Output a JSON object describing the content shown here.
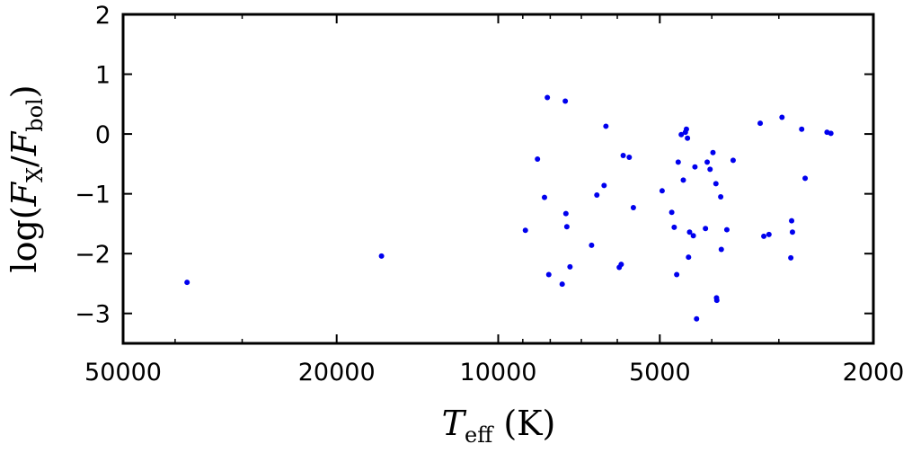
{
  "chart_data": {
    "type": "scatter",
    "xscale": "log",
    "x_reversed": true,
    "xlim": [
      50000,
      2000
    ],
    "ylim": [
      -3.5,
      2
    ],
    "xlabel": "T_eff (K)",
    "ylabel": "log(F_X/F_bol)",
    "x_ticks": [
      50000,
      20000,
      10000,
      5000,
      2000
    ],
    "x_tick_labels": [
      "50000",
      "20000",
      "10000",
      "5000",
      "2000"
    ],
    "y_ticks": [
      2,
      1,
      0,
      -1,
      -2,
      -3
    ],
    "y_tick_labels": [
      "2",
      "1",
      "0",
      "−1",
      "−2",
      "−3"
    ],
    "marker_color": "#0000ee",
    "grid": false,
    "points": [
      {
        "x": 38000,
        "y": -2.48
      },
      {
        "x": 16500,
        "y": -2.04
      },
      {
        "x": 8900,
        "y": -1.61
      },
      {
        "x": 8450,
        "y": -0.42
      },
      {
        "x": 8200,
        "y": -1.06
      },
      {
        "x": 8100,
        "y": 0.61
      },
      {
        "x": 8050,
        "y": -2.35
      },
      {
        "x": 7600,
        "y": -2.51
      },
      {
        "x": 7500,
        "y": 0.55
      },
      {
        "x": 7480,
        "y": -1.33
      },
      {
        "x": 7450,
        "y": -1.55
      },
      {
        "x": 7350,
        "y": -2.22
      },
      {
        "x": 6700,
        "y": -1.86
      },
      {
        "x": 6550,
        "y": -1.02
      },
      {
        "x": 6350,
        "y": -0.86
      },
      {
        "x": 6300,
        "y": 0.13
      },
      {
        "x": 5950,
        "y": -2.23
      },
      {
        "x": 5900,
        "y": -2.18
      },
      {
        "x": 5850,
        "y": -0.36
      },
      {
        "x": 5700,
        "y": -0.39
      },
      {
        "x": 5600,
        "y": -1.23
      },
      {
        "x": 4950,
        "y": -0.95
      },
      {
        "x": 4750,
        "y": -1.31
      },
      {
        "x": 4700,
        "y": -1.56
      },
      {
        "x": 4650,
        "y": -2.35
      },
      {
        "x": 4620,
        "y": -0.47
      },
      {
        "x": 4560,
        "y": -0.01
      },
      {
        "x": 4520,
        "y": -0.77
      },
      {
        "x": 4480,
        "y": 0.03
      },
      {
        "x": 4460,
        "y": 0.08
      },
      {
        "x": 4440,
        "y": -0.07
      },
      {
        "x": 4420,
        "y": -2.06
      },
      {
        "x": 4400,
        "y": -1.64
      },
      {
        "x": 4330,
        "y": -1.7
      },
      {
        "x": 4300,
        "y": -0.55
      },
      {
        "x": 4270,
        "y": -3.09
      },
      {
        "x": 4110,
        "y": -1.58
      },
      {
        "x": 4080,
        "y": -0.47
      },
      {
        "x": 4030,
        "y": -0.59
      },
      {
        "x": 3980,
        "y": -0.31
      },
      {
        "x": 3930,
        "y": -0.83
      },
      {
        "x": 3920,
        "y": -2.74
      },
      {
        "x": 3915,
        "y": -2.78
      },
      {
        "x": 3850,
        "y": -1.05
      },
      {
        "x": 3840,
        "y": -1.93
      },
      {
        "x": 3750,
        "y": -1.6
      },
      {
        "x": 3650,
        "y": -0.44
      },
      {
        "x": 3250,
        "y": 0.18
      },
      {
        "x": 3200,
        "y": -1.71
      },
      {
        "x": 3130,
        "y": -1.68
      },
      {
        "x": 2960,
        "y": 0.28
      },
      {
        "x": 2850,
        "y": -2.07
      },
      {
        "x": 2840,
        "y": -1.45
      },
      {
        "x": 2830,
        "y": -1.64
      },
      {
        "x": 2720,
        "y": 0.08
      },
      {
        "x": 2680,
        "y": -0.74
      },
      {
        "x": 2440,
        "y": 0.03
      },
      {
        "x": 2400,
        "y": 0.01
      }
    ]
  }
}
